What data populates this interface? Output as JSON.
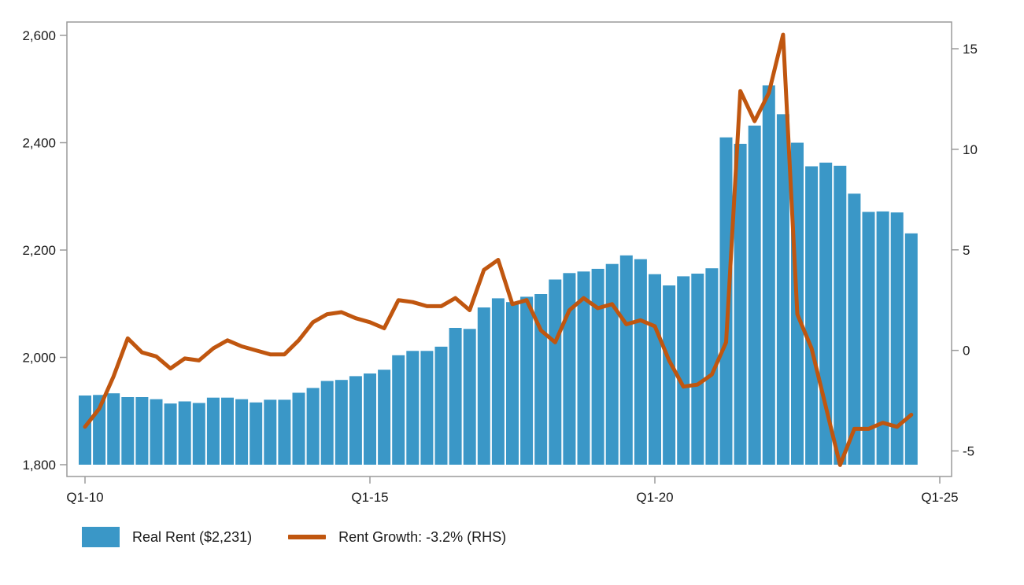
{
  "chart_data": {
    "type": "bar+line",
    "x_tick_labels": [
      "Q1-10",
      "Q1-15",
      "Q1-20",
      "Q1-25"
    ],
    "left_axis": {
      "ylim": [
        1800,
        2600
      ],
      "ticks": [
        "1,800",
        "2,000",
        "2,200",
        "2,400",
        "2,600"
      ]
    },
    "right_axis": {
      "ylim": [
        -6,
        16
      ],
      "ticks": [
        "-5",
        "0",
        "5",
        "10",
        "15"
      ]
    },
    "colors": {
      "bars": "#3a97c7",
      "line": "#c0560f",
      "axis": "#999999"
    },
    "series": [
      {
        "name": "Real Rent ($2,231)",
        "type": "bar",
        "axis": "left",
        "values": [
          1929,
          1930,
          1933,
          1926,
          1926,
          1922,
          1914,
          1918,
          1915,
          1925,
          1925,
          1922,
          1916,
          1921,
          1921,
          1934,
          1943,
          1956,
          1958,
          1965,
          1970,
          1977,
          2004,
          2012,
          2012,
          2020,
          2055,
          2053,
          2093,
          2110,
          2103,
          2113,
          2118,
          2145,
          2157,
          2160,
          2165,
          2174,
          2190,
          2183,
          2155,
          2134,
          2151,
          2156,
          2166,
          2410,
          2398,
          2432,
          2507,
          2453,
          2400,
          2356,
          2363,
          2357,
          2305,
          2271,
          2272,
          2270,
          2231
        ]
      },
      {
        "name": "Rent Growth: -3.2% (RHS)",
        "type": "line",
        "axis": "right",
        "values": [
          -3.8,
          -2.9,
          -1.3,
          0.6,
          -0.1,
          -0.3,
          -0.9,
          -0.4,
          -0.5,
          0.1,
          0.5,
          0.2,
          0.0,
          -0.2,
          -0.2,
          0.5,
          1.4,
          1.8,
          1.9,
          1.6,
          1.4,
          1.1,
          2.5,
          2.4,
          2.2,
          2.2,
          2.6,
          2.0,
          4.0,
          4.5,
          2.3,
          2.5,
          1.0,
          0.4,
          2.0,
          2.6,
          2.1,
          2.3,
          1.3,
          1.5,
          1.2,
          -0.5,
          -1.8,
          -1.7,
          -1.2,
          0.4,
          12.9,
          11.4,
          12.8,
          15.7,
          1.8,
          0.1,
          -2.8,
          -5.7,
          -3.9,
          -3.9,
          -3.6,
          -3.8,
          -3.2
        ]
      }
    ]
  }
}
